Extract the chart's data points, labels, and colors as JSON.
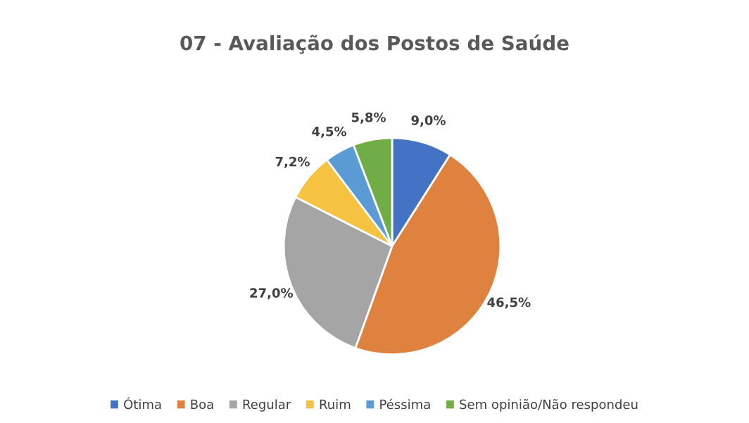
{
  "chart_data": {
    "type": "pie",
    "title": "07 - Avaliação dos Postos de Saúde",
    "categories": [
      "Ótima",
      "Boa",
      "Regular",
      "Ruim",
      "Péssima",
      "Sem opinião/Não respondeu"
    ],
    "values": [
      9.0,
      46.5,
      27.0,
      7.2,
      4.5,
      5.8
    ],
    "value_labels": [
      "9,0%",
      "46,5%",
      "27,0%",
      "7,2%",
      "4,5%",
      "5,8%"
    ],
    "colors": [
      "#4472c4",
      "#e0823f",
      "#a5a5a5",
      "#f5c242",
      "#5b9bd5",
      "#70ad47"
    ],
    "legend": "bottom"
  }
}
